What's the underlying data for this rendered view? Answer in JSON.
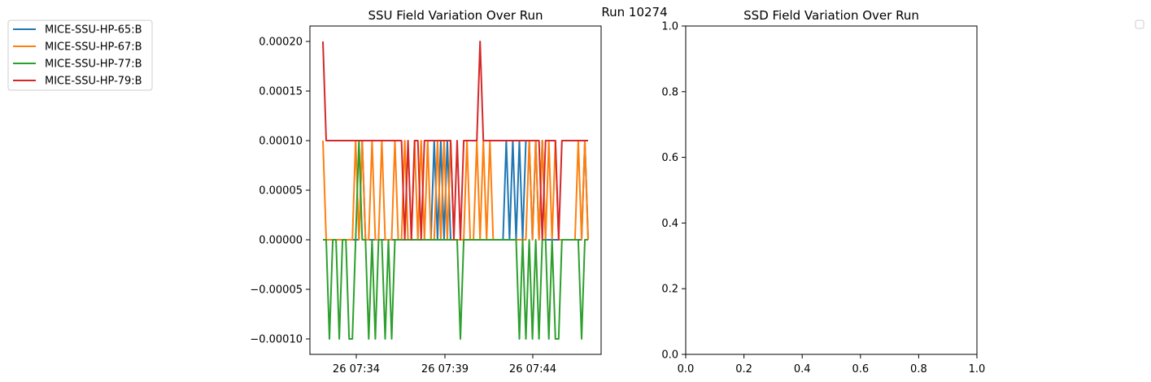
{
  "figure": {
    "suptitle": "Run 10274"
  },
  "chart_data": [
    {
      "type": "line",
      "title": "SSU Field Variation Over Run",
      "xlabel": "",
      "ylabel": "",
      "x_tick_labels": [
        "26 07:34",
        "26 07:39",
        "26 07:44"
      ],
      "y_tick_labels": [
        "0.00020",
        "0.00015",
        "0.00010",
        "0.00005",
        "0.00000",
        "−0.00005",
        "−0.00010"
      ],
      "y_ticks": [
        0.0002,
        0.00015,
        0.0001,
        5e-05,
        0,
        -5e-05,
        -0.0001
      ],
      "ylim": [
        -0.00011,
        0.00021
      ],
      "grid": false,
      "legend_position": "outside top-left",
      "series": [
        {
          "name": "MICE-SSU-HP-65:B",
          "color": "#1f77b4",
          "values": [
            0,
            0,
            0,
            0,
            0,
            0,
            0,
            0,
            0,
            0,
            0,
            0,
            0.0001,
            0,
            0,
            0,
            0,
            0,
            0,
            0,
            0,
            0,
            0,
            0,
            0,
            0,
            0,
            0,
            0,
            0,
            0,
            0,
            0,
            0,
            0.0001,
            0,
            0.0001,
            0,
            0.0001,
            0,
            0,
            0,
            0,
            0,
            0,
            0,
            0,
            0,
            0,
            0,
            0,
            0,
            0,
            0,
            0,
            0,
            0.0001,
            0,
            0.0001,
            0,
            0.0001,
            0,
            0.0001,
            0.0001,
            0,
            0.0001,
            0,
            0.0001,
            0,
            0,
            0,
            0,
            0,
            0,
            0,
            0,
            0,
            0,
            0,
            0,
            0.0001,
            0
          ]
        },
        {
          "name": "MICE-SSU-HP-67:B",
          "color": "#ff7f0e",
          "values": [
            0.0001,
            0,
            0,
            0,
            0,
            0,
            0,
            0,
            0,
            0,
            0.0001,
            0,
            0.0001,
            0,
            0,
            0.0001,
            0,
            0,
            0.0001,
            0,
            0,
            0,
            0.0001,
            0,
            0,
            0.0001,
            0,
            0,
            0.0001,
            0,
            0.0001,
            0,
            0.0001,
            0,
            0,
            0.0001,
            0,
            0.0001,
            0,
            0.0001,
            0,
            0,
            0,
            0,
            0.0001,
            0,
            0,
            0.0001,
            0,
            0.0001,
            0,
            0.0001,
            0,
            0,
            0,
            0,
            0,
            0,
            0,
            0,
            0,
            0,
            0,
            0.0001,
            0,
            0.0001,
            0,
            0.0001,
            0,
            0.0001,
            0,
            0.0001,
            0,
            0,
            0,
            0,
            0,
            0,
            0.0001,
            0,
            0.0001,
            0
          ]
        },
        {
          "name": "MICE-SSU-HP-77:B",
          "color": "#2ca02c",
          "values": [
            0,
            0,
            -0.0001,
            0,
            0,
            -0.0001,
            0,
            0,
            -0.0001,
            -0.0001,
            0,
            0.0001,
            0,
            0,
            -0.0001,
            0,
            -0.0001,
            0,
            0,
            -0.0001,
            0,
            -0.0001,
            0,
            0,
            0,
            0,
            0,
            0,
            0,
            0,
            0,
            0,
            0,
            0,
            0,
            0,
            0,
            0,
            0,
            0,
            0,
            0,
            -0.0001,
            0,
            0,
            0,
            0,
            0,
            0,
            0,
            0,
            0,
            0,
            0,
            0,
            0,
            0,
            0,
            0,
            0,
            -0.0001,
            0,
            -0.0001,
            0,
            -0.0001,
            0,
            -0.0001,
            0,
            0,
            -0.0001,
            0,
            -0.0001,
            -0.0001,
            0,
            0,
            0,
            0,
            0,
            0,
            -0.0001,
            0,
            0
          ]
        },
        {
          "name": "MICE-SSU-HP-79:B",
          "color": "#d62728",
          "values": [
            0.0002,
            0.0001,
            0.0001,
            0.0001,
            0.0001,
            0.0001,
            0.0001,
            0.0001,
            0.0001,
            0.0001,
            0.0001,
            0.0001,
            0.0001,
            0.0001,
            0.0001,
            0.0001,
            0.0001,
            0.0001,
            0.0001,
            0.0001,
            0.0001,
            0.0001,
            0.0001,
            0.0001,
            0.0001,
            0,
            0.0001,
            0,
            0.0001,
            0.0001,
            0,
            0.0001,
            0.0001,
            0.0001,
            0.0001,
            0.0001,
            0.0001,
            0.0001,
            0.0001,
            0.0001,
            0,
            0.0001,
            0,
            0.0001,
            0.0001,
            0.0001,
            0.0001,
            0.0001,
            0.0002,
            0.0001,
            0.0001,
            0.0001,
            0.0001,
            0.0001,
            0.0001,
            0.0001,
            0.0001,
            0.0001,
            0.0001,
            0.0001,
            0.0001,
            0.0001,
            0.0001,
            0.0001,
            0.0001,
            0.0001,
            0.0001,
            0,
            0.0001,
            0.0001,
            0.0001,
            0.0001,
            0,
            0.0001,
            0.0001,
            0.0001,
            0.0001,
            0.0001,
            0.0001,
            0.0001,
            0.0001,
            0.0001
          ]
        }
      ]
    },
    {
      "type": "line",
      "title": "SSD Field Variation Over Run",
      "xlabel": "",
      "ylabel": "",
      "x_ticks": [
        0.0,
        0.2,
        0.4,
        0.6,
        0.8,
        1.0
      ],
      "x_tick_labels": [
        "0.0",
        "0.2",
        "0.4",
        "0.6",
        "0.8",
        "1.0"
      ],
      "y_ticks": [
        0.0,
        0.2,
        0.4,
        0.6,
        0.8,
        1.0
      ],
      "y_tick_labels": [
        "0.0",
        "0.2",
        "0.4",
        "0.6",
        "0.8",
        "1.0"
      ],
      "xlim": [
        0,
        1
      ],
      "ylim": [
        0,
        1
      ],
      "grid": false,
      "legend_position": "outside top-right (empty)",
      "series": []
    }
  ]
}
